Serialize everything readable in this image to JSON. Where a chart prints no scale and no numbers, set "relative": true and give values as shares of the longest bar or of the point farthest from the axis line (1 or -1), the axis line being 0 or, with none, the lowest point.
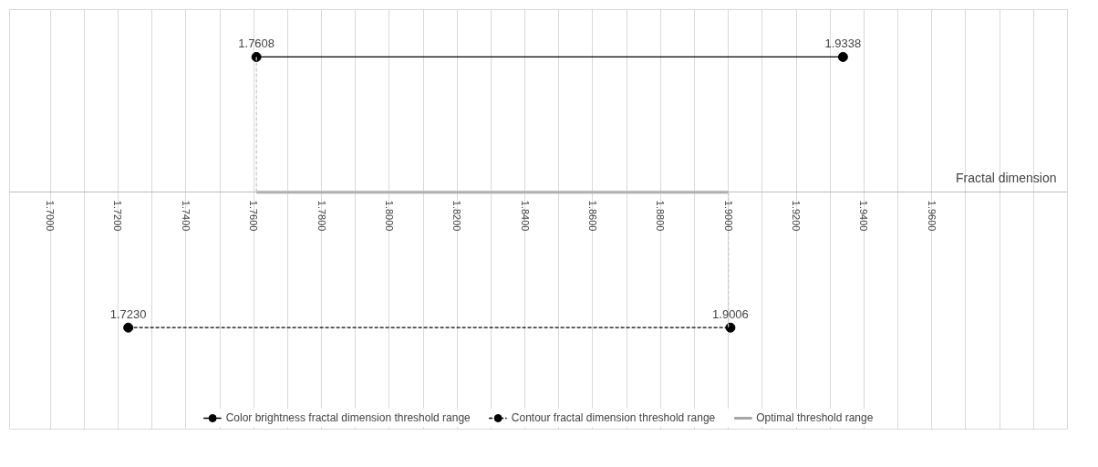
{
  "chart_data": {
    "type": "line",
    "relative": true,
    "xlabel": "Fractal dimension",
    "xlim": [
      1.688,
      2.0
    ],
    "xticks": [
      {
        "value": 1.7,
        "label": "1.7000"
      },
      {
        "value": 1.71,
        "label": null
      },
      {
        "value": 1.72,
        "label": "1.7200"
      },
      {
        "value": 1.73,
        "label": null
      },
      {
        "value": 1.74,
        "label": "1.7400"
      },
      {
        "value": 1.75,
        "label": null
      },
      {
        "value": 1.76,
        "label": "1.7600"
      },
      {
        "value": 1.77,
        "label": null
      },
      {
        "value": 1.78,
        "label": "1.7800"
      },
      {
        "value": 1.79,
        "label": null
      },
      {
        "value": 1.8,
        "label": "1.8000"
      },
      {
        "value": 1.81,
        "label": null
      },
      {
        "value": 1.82,
        "label": "1.8200"
      },
      {
        "value": 1.83,
        "label": null
      },
      {
        "value": 1.84,
        "label": "1.8400"
      },
      {
        "value": 1.85,
        "label": null
      },
      {
        "value": 1.86,
        "label": "1.8600"
      },
      {
        "value": 1.87,
        "label": null
      },
      {
        "value": 1.88,
        "label": "1.8800"
      },
      {
        "value": 1.89,
        "label": null
      },
      {
        "value": 1.9,
        "label": "1.9000"
      },
      {
        "value": 1.91,
        "label": null
      },
      {
        "value": 1.92,
        "label": "1.9200"
      },
      {
        "value": 1.93,
        "label": null
      },
      {
        "value": 1.94,
        "label": "1.9400"
      },
      {
        "value": 1.95,
        "label": null
      },
      {
        "value": 1.96,
        "label": "1.9600"
      },
      {
        "value": 1.97,
        "label": null
      },
      {
        "value": 1.98,
        "label": null
      },
      {
        "value": 1.99,
        "label": null
      }
    ],
    "grid": "x",
    "legend": "bottom",
    "annotations": [
      {
        "text": "1.7608",
        "x": 1.7608,
        "y": 1
      },
      {
        "text": "1.9338",
        "x": 1.9338,
        "y": 1
      },
      {
        "text": "1.7230",
        "x": 1.723,
        "y": -1
      },
      {
        "text": "1.9006",
        "x": 1.9006,
        "y": -1
      }
    ],
    "series": [
      {
        "name": "Color brightness fractal dimension threshold range",
        "color": "#000000",
        "x": [
          1.7608,
          1.9338
        ],
        "values": [
          1,
          1
        ],
        "marker": "circle",
        "line_style": "solid"
      },
      {
        "name": "Contour fractal dimension threshold range",
        "color": "#000000",
        "x": [
          1.723,
          1.9006
        ],
        "values": [
          -1,
          -1
        ],
        "marker": "circle",
        "line_style": "dashed"
      },
      {
        "name": "Optimal threshold range",
        "color": "#a6a6a6",
        "x": [
          1.7608,
          1.9
        ],
        "values": [
          0,
          0
        ],
        "marker": "none",
        "line_style": "solid"
      },
      {
        "color": "#c8c8c8",
        "x": [
          1.7608,
          1.7608
        ],
        "values": [
          1,
          0
        ],
        "marker": "none",
        "line_style": "dashed"
      },
      {
        "color": "#c8c8c8",
        "x": [
          1.9,
          1.9
        ],
        "values": [
          0,
          -1
        ],
        "marker": "none",
        "line_style": "dashed"
      }
    ]
  }
}
